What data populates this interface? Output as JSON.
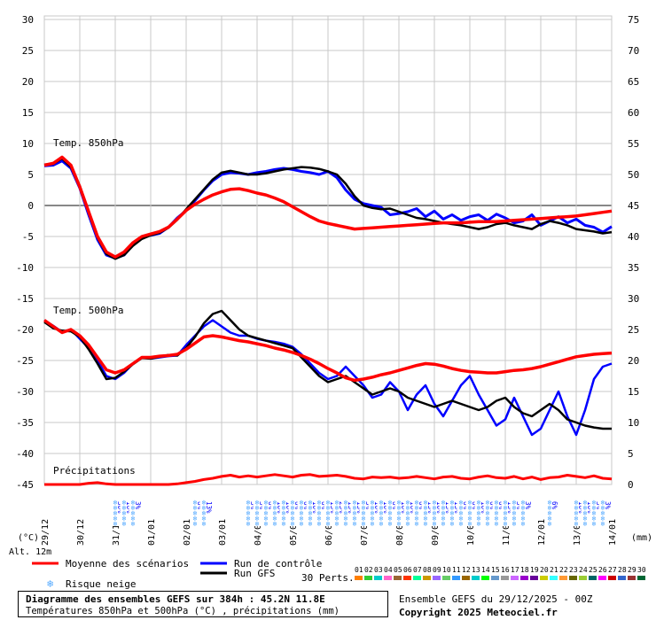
{
  "footer": {
    "title": "Diagramme des ensembles GEFS sur 384h : 45.2N 11.8E",
    "subtitle": "Températures 850hPa et 500hPa (°C) , précipitations (mm)",
    "run_info": "Ensemble GEFS du 29/12/2025 - 00Z",
    "copyright": "Copyright 2025 Meteociel.fr"
  },
  "colors": {
    "mean": "#ff0000",
    "control": "#0000ff",
    "gfs": "#000000",
    "snow": "#55aaff",
    "grid": "#c8c8c8"
  },
  "chart_data": {
    "type": "line",
    "axis_unit_left": "(°C)",
    "axis_unit_right": "(mm)",
    "altitude_label": "Alt. 12m",
    "y_left_ticks": [
      30,
      25,
      20,
      15,
      10,
      5,
      0,
      -5,
      -10,
      -15,
      -20,
      -25,
      -30,
      -35,
      -40,
      -45
    ],
    "y_right_ticks": [
      75,
      70,
      65,
      60,
      55,
      50,
      45,
      40,
      35,
      30,
      25,
      20,
      15,
      10,
      5,
      0
    ],
    "ylim_left": [
      -45,
      30
    ],
    "ylim_right": [
      0,
      75
    ],
    "x_hours_range": [
      0,
      384
    ],
    "x_ticks": [
      {
        "label": "29/12",
        "h": 0
      },
      {
        "label": "30/12",
        "h": 24
      },
      {
        "label": "31/12",
        "h": 48
      },
      {
        "label": "01/01",
        "h": 72
      },
      {
        "label": "02/01",
        "h": 96
      },
      {
        "label": "03/01",
        "h": 120
      },
      {
        "label": "04/01",
        "h": 144
      },
      {
        "label": "05/01",
        "h": 168
      },
      {
        "label": "06/01",
        "h": 192
      },
      {
        "label": "07/01",
        "h": 216
      },
      {
        "label": "08/01",
        "h": 240
      },
      {
        "label": "09/01",
        "h": 264
      },
      {
        "label": "10/01",
        "h": 288
      },
      {
        "label": "11/01",
        "h": 312
      },
      {
        "label": "12/01",
        "h": 336
      },
      {
        "label": "13/01",
        "h": 360
      },
      {
        "label": "14/01",
        "h": 384
      }
    ],
    "panel_labels": [
      "Temp. 850hPa",
      "Temp. 500hPa",
      "Précipitations"
    ],
    "t850": {
      "hours": [
        0,
        6,
        12,
        18,
        24,
        30,
        36,
        42,
        48,
        54,
        60,
        66,
        72,
        78,
        84,
        90,
        96,
        102,
        108,
        114,
        120,
        126,
        132,
        138,
        144,
        150,
        156,
        162,
        168,
        174,
        180,
        186,
        192,
        198,
        204,
        210,
        216,
        222,
        228,
        234,
        240,
        246,
        252,
        258,
        264,
        270,
        276,
        282,
        288,
        294,
        300,
        306,
        312,
        318,
        324,
        330,
        336,
        342,
        348,
        354,
        360,
        366,
        372,
        378,
        384
      ],
      "mean": [
        6.5,
        6.8,
        7.8,
        6.5,
        3,
        -1,
        -5,
        -7.5,
        -8.3,
        -7.5,
        -6,
        -5,
        -4.6,
        -4.2,
        -3.5,
        -2.2,
        -0.8,
        0.2,
        1,
        1.7,
        2.2,
        2.6,
        2.7,
        2.4,
        2,
        1.7,
        1.2,
        0.6,
        -0.2,
        -1,
        -1.8,
        -2.5,
        -2.9,
        -3.2,
        -3.5,
        -3.8,
        -3.7,
        -3.6,
        -3.5,
        -3.4,
        -3.3,
        -3.2,
        -3.1,
        -3,
        -2.9,
        -2.8,
        -2.8,
        -2.8,
        -2.7,
        -2.6,
        -2.6,
        -2.6,
        -2.5,
        -2.4,
        -2.3,
        -2.2,
        -2.1,
        -2,
        -1.9,
        -1.8,
        -1.7,
        -1.5,
        -1.3,
        -1.1,
        -0.9
      ],
      "control": [
        6.4,
        6.5,
        7.2,
        6,
        2.8,
        -1.5,
        -5.5,
        -8,
        -8.5,
        -8,
        -6.3,
        -5.2,
        -4.8,
        -4.5,
        -3.5,
        -2,
        -0.8,
        0.8,
        2.5,
        4,
        5,
        5.3,
        5.2,
        5,
        5.3,
        5.5,
        5.8,
        6,
        5.8,
        5.5,
        5.3,
        5,
        5.5,
        4.5,
        2.5,
        1,
        0.3,
        0,
        -0.3,
        -1.5,
        -1.3,
        -1,
        -0.5,
        -1.8,
        -0.9,
        -2.2,
        -1.5,
        -2.4,
        -1.8,
        -1.5,
        -2.4,
        -1.4,
        -2,
        -2.8,
        -2.5,
        -1.5,
        -3.2,
        -2.5,
        -1.8,
        -2.8,
        -2.2,
        -3.2,
        -3.5,
        -4.3,
        -3.4
      ],
      "gfs": [
        6.6,
        6.7,
        7.6,
        6.2,
        3.2,
        -1,
        -5.2,
        -7.8,
        -8.6,
        -8,
        -6.5,
        -5.4,
        -4.8,
        -4.4,
        -3.6,
        -2.3,
        -0.6,
        1,
        2.6,
        4.2,
        5.3,
        5.6,
        5.3,
        5,
        5,
        5.2,
        5.5,
        5.8,
        6,
        6.2,
        6.1,
        5.9,
        5.5,
        5,
        3.5,
        1.5,
        0,
        -0.4,
        -0.6,
        -0.5,
        -1,
        -1.5,
        -2,
        -2.2,
        -2.5,
        -2.8,
        -3,
        -3.2,
        -3.5,
        -3.8,
        -3.5,
        -3,
        -2.8,
        -3.2,
        -3.5,
        -3.8,
        -3,
        -2.5,
        -2.8,
        -3.2,
        -3.8,
        -4,
        -4.2,
        -4.5,
        -4.3
      ]
    },
    "t500": {
      "mean": [
        -18.5,
        -19.5,
        -20.5,
        -20,
        -21,
        -22.5,
        -24.5,
        -26.5,
        -27,
        -26.5,
        -25.5,
        -24.5,
        -24.5,
        -24.3,
        -24.2,
        -24,
        -23.2,
        -22.2,
        -21.2,
        -21,
        -21.2,
        -21.5,
        -21.8,
        -22,
        -22.3,
        -22.6,
        -23,
        -23.3,
        -23.7,
        -24.2,
        -24.8,
        -25.5,
        -26.3,
        -27,
        -27.8,
        -28.2,
        -28,
        -27.7,
        -27.3,
        -27,
        -26.6,
        -26.2,
        -25.8,
        -25.5,
        -25.6,
        -25.9,
        -26.3,
        -26.6,
        -26.8,
        -26.9,
        -27,
        -27,
        -26.8,
        -26.6,
        -26.5,
        -26.3,
        -26,
        -25.6,
        -25.2,
        -24.8,
        -24.4,
        -24.2,
        -24,
        -23.9,
        -23.8
      ],
      "control": [
        -18.5,
        -19.4,
        -20.4,
        -20,
        -21.5,
        -23,
        -25,
        -27.5,
        -28,
        -27,
        -25.5,
        -24.5,
        -24.7,
        -24.5,
        -24.3,
        -24.2,
        -22.5,
        -21,
        -19.5,
        -18.5,
        -19.5,
        -20.5,
        -21,
        -21,
        -21.5,
        -21.8,
        -22,
        -22.3,
        -22.8,
        -24,
        -25.5,
        -27,
        -28,
        -27.5,
        -26,
        -27.5,
        -29,
        -31,
        -30.5,
        -28.5,
        -30,
        -33,
        -30.5,
        -29,
        -32,
        -34,
        -31.5,
        -29,
        -27.5,
        -30.5,
        -33,
        -35.5,
        -34.5,
        -31,
        -34,
        -37,
        -36,
        -33,
        -30,
        -34,
        -37,
        -33,
        -28,
        -26,
        -25.5
      ],
      "gfs": [
        -18.8,
        -19.8,
        -20.2,
        -20.3,
        -21.2,
        -23.2,
        -25.5,
        -28,
        -27.8,
        -26.8,
        -25.6,
        -24.6,
        -24.7,
        -24.4,
        -24.1,
        -24.2,
        -23,
        -21.2,
        -19,
        -17.5,
        -17,
        -18.5,
        -20,
        -21,
        -21.4,
        -21.8,
        -22.2,
        -22.6,
        -23,
        -24.5,
        -26,
        -27.5,
        -28.5,
        -28,
        -27.5,
        -28.5,
        -29.5,
        -30.5,
        -30,
        -29.5,
        -30,
        -31,
        -31.5,
        -32,
        -32.5,
        -32,
        -31.5,
        -32,
        -32.5,
        -33,
        -32.5,
        -31.5,
        -31,
        -32.5,
        -33.5,
        -34,
        -33,
        -32,
        -33,
        -34.5,
        -35,
        -35.5,
        -35.8,
        -36,
        -36
      ]
    },
    "precip": {
      "mean": [
        0,
        0,
        0,
        0,
        0,
        0.2,
        0.3,
        0.1,
        0,
        0,
        0,
        0,
        0,
        0,
        0,
        0.1,
        0.3,
        0.5,
        0.8,
        1,
        1.3,
        1.5,
        1.2,
        1.4,
        1.2,
        1.4,
        1.6,
        1.4,
        1.2,
        1.5,
        1.6,
        1.3,
        1.4,
        1.5,
        1.3,
        1,
        0.9,
        1.2,
        1.1,
        1.2,
        1,
        1.1,
        1.3,
        1.1,
        0.9,
        1.2,
        1.3,
        1,
        0.9,
        1.2,
        1.4,
        1.1,
        1,
        1.3,
        0.9,
        1.2,
        0.8,
        1.1,
        1.2,
        1.5,
        1.3,
        1.1,
        1.4,
        1,
        0.9
      ]
    },
    "snow_risk": [
      {
        "h": 48,
        "labels": [
          "30%",
          "16%",
          "3%"
        ]
      },
      {
        "h": 102,
        "labels": [
          "6%",
          "13%"
        ]
      },
      {
        "h": 138,
        "labels": [
          "3%",
          "3%",
          "6%",
          "10%",
          "10%",
          "6%",
          "6%",
          "10%",
          "6%",
          "13%",
          "23%",
          "13%",
          "13%",
          "3%",
          "10%",
          "10%",
          "6%",
          "10%",
          "16%",
          "6%",
          "13%",
          "10%",
          "13%",
          "13%",
          "6%",
          "6%",
          "10%",
          "6%",
          "6%",
          "13%",
          "3%",
          "3%"
        ]
      },
      {
        "h": 342,
        "labels": [
          "6%"
        ]
      },
      {
        "h": 360,
        "labels": [
          "10%",
          "16%",
          "3%",
          "3%"
        ]
      }
    ]
  },
  "legend": {
    "mean_label": "Moyenne des scénarios",
    "control_label": "Run de contrôle",
    "gfs_label": "Run GFS",
    "snow_label": "Risque neige",
    "perts_label": "30 Perts.",
    "pert_numbers": [
      "01",
      "02",
      "03",
      "04",
      "05",
      "06",
      "07",
      "08",
      "09",
      "10",
      "11",
      "12",
      "13",
      "14",
      "15",
      "16",
      "17",
      "18",
      "19",
      "20",
      "21",
      "22",
      "23",
      "24",
      "25",
      "26",
      "27",
      "28",
      "29",
      "30"
    ],
    "pert_colors": [
      "#ff7f00",
      "#33cc33",
      "#00cccc",
      "#ff66cc",
      "#996633",
      "#ff3300",
      "#00ff99",
      "#cc9900",
      "#9966ff",
      "#66cc66",
      "#3399ff",
      "#996600",
      "#00cccc",
      "#00ff00",
      "#6699cc",
      "#999999",
      "#cc66ff",
      "#9900cc",
      "#660099",
      "#cccc00",
      "#33ffff",
      "#ff9933",
      "#666600",
      "#99cc33",
      "#006666",
      "#ff00ff",
      "#cc0000",
      "#3366cc",
      "#993333",
      "#006633"
    ]
  }
}
